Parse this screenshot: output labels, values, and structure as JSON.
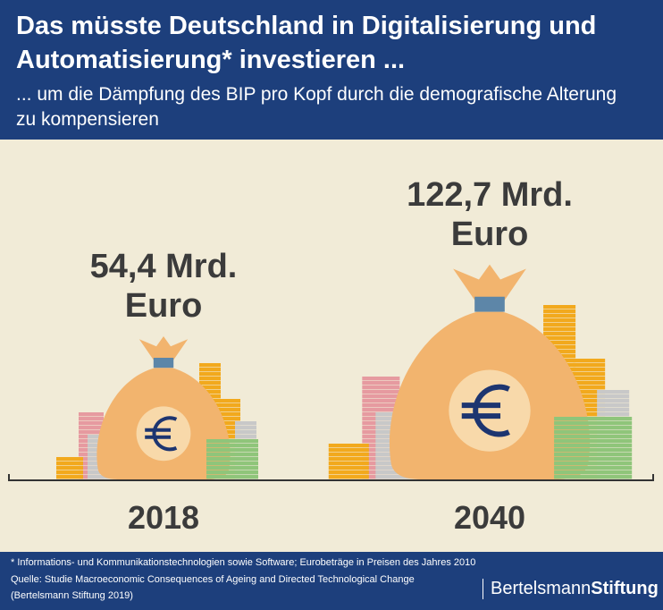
{
  "chart_data": {
    "type": "bag",
    "title": "Das müsste Deutschland in Digitalisierung und Automatisierung* investieren ...",
    "subtitle": "... um die Dämpfung des BIP pro Kopf durch die demografische Alterung zu kompensieren",
    "categories": [
      "2018",
      "2040"
    ],
    "values": [
      54.4,
      122.7
    ],
    "value_labels": [
      "54,4 Mrd. Euro",
      "122,7 Mrd. Euro"
    ],
    "color": "#f2b46e"
  },
  "footer": {
    "note": "* Informations- und Kommunikationstechnologien sowie Software; Eurobeträge in Preisen des Jahres 2010",
    "source": "Quelle: Studie Macroeconomic Consequences of Ageing and Directed Technological Change",
    "source_detail": "(Bertelsmann Stiftung 2019)",
    "logo_left": "Bertelsmann",
    "logo_right": "Stiftung"
  }
}
